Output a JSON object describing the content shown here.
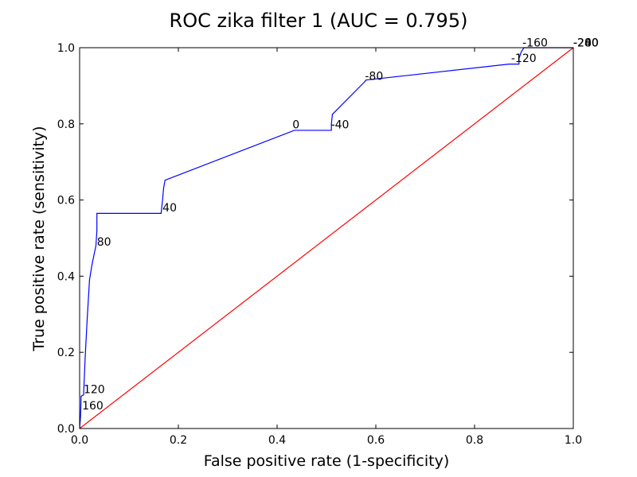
{
  "chart_data": {
    "type": "line",
    "title": "ROC zika filter 1 (AUC = 0.795)",
    "xlabel": "False positive rate (1-specificity)",
    "ylabel": "True positive rate (sensitivity)",
    "xlim": [
      0.0,
      1.0
    ],
    "ylim": [
      0.0,
      1.0
    ],
    "xticks": [
      "0.0",
      "0.2",
      "0.4",
      "0.6",
      "0.8",
      "1.0"
    ],
    "yticks": [
      "0.0",
      "0.2",
      "0.4",
      "0.6",
      "0.8",
      "1.0"
    ],
    "grid": false,
    "colors": {
      "roc": "#0000ff",
      "diagonal": "#ff0000"
    },
    "series": [
      {
        "role": "roc",
        "x": [
          0.0,
          0.002,
          0.003,
          0.005,
          0.006,
          0.008,
          0.011,
          0.015,
          0.02,
          0.025,
          0.033,
          0.034,
          0.035,
          0.035,
          0.165,
          0.168,
          0.17,
          0.173,
          0.435,
          0.437,
          0.51,
          0.51,
          0.512,
          0.577,
          0.58,
          0.87,
          0.89,
          0.89,
          0.895,
          0.9,
          1.0
        ],
        "y": [
          0.0,
          0.035,
          0.085,
          0.086,
          0.087,
          0.088,
          0.18,
          0.28,
          0.39,
          0.43,
          0.48,
          0.5,
          0.52,
          0.565,
          0.565,
          0.6,
          0.63,
          0.652,
          0.783,
          0.783,
          0.783,
          0.8,
          0.825,
          0.91,
          0.915,
          0.957,
          0.957,
          0.972,
          0.99,
          1.0,
          1.0
        ]
      },
      {
        "role": "diagonal",
        "x": [
          0.0,
          1.0
        ],
        "y": [
          0.0,
          1.0
        ]
      }
    ],
    "annotations": [
      {
        "text": "160",
        "x": 0.005,
        "y": 0.05
      },
      {
        "text": "120",
        "x": 0.008,
        "y": 0.093
      },
      {
        "text": "80",
        "x": 0.035,
        "y": 0.48
      },
      {
        "text": "40",
        "x": 0.168,
        "y": 0.57
      },
      {
        "text": "0",
        "x": 0.431,
        "y": 0.788
      },
      {
        "text": "-40",
        "x": 0.509,
        "y": 0.788
      },
      {
        "text": "-80",
        "x": 0.578,
        "y": 0.915
      },
      {
        "text": "-120",
        "x": 0.874,
        "y": 0.962
      },
      {
        "text": "-160",
        "x": 0.897,
        "y": 1.003
      },
      {
        "text": "-200",
        "x": 1.0,
        "y": 1.003
      },
      {
        "text": "-240",
        "x": 1.0,
        "y": 1.003
      },
      {
        "text": "-280",
        "x": 1.0,
        "y": 1.003
      }
    ]
  }
}
